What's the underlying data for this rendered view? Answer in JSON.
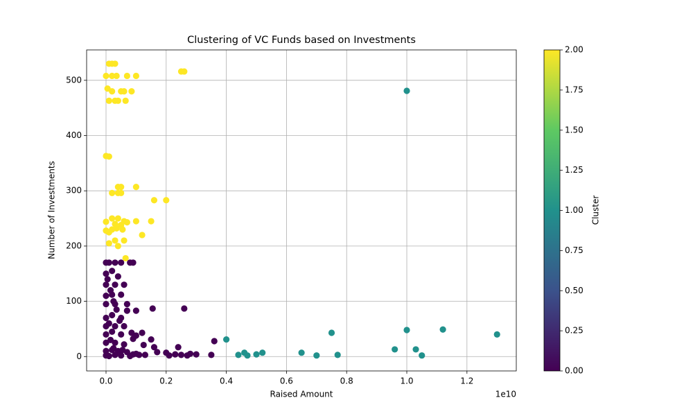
{
  "chart_data": {
    "type": "scatter",
    "title": "Clustering of VC Funds based on Investments",
    "x_label": "Raised Amount",
    "y_label": "Number of Investments",
    "x_offset_label": "1e10",
    "colorbar_label": "Cluster",
    "grid": true,
    "colormap": [
      "#440154",
      "#3b528b",
      "#21918c",
      "#5ec962",
      "#fde725"
    ],
    "xlim": [
      -645000000.0,
      13640000000.0
    ],
    "ylim": [
      -26,
      555
    ],
    "xticks": [
      {
        "value": 0,
        "label": "0.0"
      },
      {
        "value": 2000000000.0,
        "label": "0.2"
      },
      {
        "value": 4000000000.0,
        "label": "0.4"
      },
      {
        "value": 6000000000.0,
        "label": "0.6"
      },
      {
        "value": 8000000000.0,
        "label": "0.8"
      },
      {
        "value": 10000000000.0,
        "label": "1.0"
      },
      {
        "value": 12000000000.0,
        "label": "1.2"
      }
    ],
    "yticks": [
      0,
      100,
      200,
      300,
      400,
      500
    ],
    "clim": [
      0,
      2
    ],
    "cticks": [
      {
        "value": 0,
        "label": "0.00"
      },
      {
        "value": 0.25,
        "label": "0.25"
      },
      {
        "value": 0.5,
        "label": "0.50"
      },
      {
        "value": 0.75,
        "label": "0.75"
      },
      {
        "value": 1,
        "label": "1.00"
      },
      {
        "value": 1.25,
        "label": "1.25"
      },
      {
        "value": 1.5,
        "label": "1.50"
      },
      {
        "value": 1.75,
        "label": "1.75"
      },
      {
        "value": 2,
        "label": "2.00"
      }
    ],
    "x": [
      100000000.0,
      200000000.0,
      300000000.0,
      0,
      200000000.0,
      350000000.0,
      700000000.0,
      1000000000.0,
      50000000.0,
      200000000.0,
      500000000.0,
      600000000.0,
      850000000.0,
      100000000.0,
      300000000.0,
      400000000.0,
      650000000.0,
      0,
      100000000.0,
      2500000000.0,
      2600000000.0,
      200000000.0,
      400000000.0,
      500000000.0,
      400000000.0,
      500000000.0,
      1000000000.0,
      1600000000.0,
      2000000000.0,
      0,
      200000000.0,
      300000000.0,
      400000000.0,
      500000000.0,
      600000000.0,
      700000000.0,
      1000000000.0,
      1500000000.0,
      0,
      100000000.0,
      200000000.0,
      350000000.0,
      550000000.0,
      1200000000.0,
      100000000.0,
      300000000.0,
      400000000.0,
      600000000.0,
      650000000.0,
      10000000000.0,
      4000000000.0,
      4400000000.0,
      4600000000.0,
      4700000000.0,
      5000000000.0,
      5200000000.0,
      6500000000.0,
      7000000000.0,
      7500000000.0,
      7700000000.0,
      9600000000.0,
      10000000000.0,
      10300000000.0,
      10500000000.0,
      11200000000.0,
      13000000000.0,
      0,
      100000000.0,
      300000000.0,
      500000000.0,
      800000000.0,
      900000000.0,
      0,
      200000000.0,
      400000000.0,
      0,
      300000000.0,
      600000000.0,
      0,
      200000000.0,
      500000000.0,
      0,
      300000000.0,
      700000000.0,
      1000000000.0,
      700000000.0,
      1550000000.0,
      2600000000.0,
      0,
      200000000.0,
      500000000.0,
      0,
      300000000.0,
      600000000.0,
      0,
      200000000.0,
      500000000.0,
      850000000.0,
      1000000000.0,
      1200000000.0,
      900000000.0,
      1500000000.0,
      0,
      300000000.0,
      600000000.0,
      1250000000.0,
      1600000000.0,
      2400000000.0,
      3600000000.0,
      0,
      200000000.0,
      400000000.0,
      700000000.0,
      1000000000.0,
      1300000000.0,
      1700000000.0,
      2000000000.0,
      2100000000.0,
      2300000000.0,
      2500000000.0,
      2700000000.0,
      2800000000.0,
      3000000000.0,
      3500000000.0,
      0,
      100000000.0,
      300000000.0,
      500000000.0,
      800000000.0,
      50000000.0,
      150000000.0,
      250000000.0,
      350000000.0,
      450000000.0,
      100000000.0,
      150000000.0,
      250000000.0,
      550000000.0,
      900000000.0,
      1100000000.0
    ],
    "y": [
      530,
      530,
      530,
      508,
      508,
      508,
      508,
      508,
      485,
      480,
      480,
      480,
      480,
      463,
      463,
      463,
      463,
      363,
      362,
      516,
      516,
      296,
      296,
      296,
      307,
      307,
      307,
      283,
      283,
      244,
      250,
      240,
      250,
      238,
      245,
      243,
      245,
      245,
      228,
      225,
      230,
      232,
      230,
      220,
      205,
      210,
      200,
      210,
      178,
      481,
      31,
      3,
      7,
      2,
      4,
      7,
      7,
      2,
      43,
      3,
      13,
      48,
      13,
      2,
      49,
      40,
      170,
      170,
      170,
      170,
      170,
      170,
      150,
      155,
      145,
      130,
      130,
      130,
      110,
      112,
      112,
      95,
      95,
      95,
      83,
      83,
      87,
      87,
      70,
      75,
      70,
      55,
      55,
      55,
      40,
      45,
      40,
      43,
      38,
      43,
      32,
      31,
      25,
      25,
      22,
      21,
      17,
      17,
      28,
      10,
      12,
      10,
      8,
      5,
      3,
      8,
      7,
      2,
      4,
      3,
      2,
      5,
      4,
      3,
      2,
      1,
      3,
      2,
      1,
      140,
      120,
      100,
      85,
      65,
      60,
      30,
      15,
      12,
      4,
      3
    ],
    "c": [
      2,
      2,
      2,
      2,
      2,
      2,
      2,
      2,
      2,
      2,
      2,
      2,
      2,
      2,
      2,
      2,
      2,
      2,
      2,
      2,
      2,
      2,
      2,
      2,
      2,
      2,
      2,
      2,
      2,
      2,
      2,
      2,
      2,
      2,
      2,
      2,
      2,
      2,
      2,
      2,
      2,
      2,
      2,
      2,
      2,
      2,
      2,
      2,
      2,
      1,
      1,
      1,
      1,
      1,
      1,
      1,
      1,
      1,
      1,
      1,
      1,
      1,
      1,
      1,
      1,
      1,
      0,
      0,
      0,
      0,
      0,
      0,
      0,
      0,
      0,
      0,
      0,
      0,
      0,
      0,
      0,
      0,
      0,
      0,
      0,
      0,
      0,
      0,
      0,
      0,
      0,
      0,
      0,
      0,
      0,
      0,
      0,
      0,
      0,
      0,
      0,
      0,
      0,
      0,
      0,
      0,
      0,
      0,
      0,
      0,
      0,
      0,
      0,
      0,
      0,
      0,
      0,
      0,
      0,
      0,
      0,
      0,
      0,
      0,
      0,
      0,
      0,
      0,
      0,
      0,
      0,
      0,
      0,
      0,
      0,
      0,
      0,
      0,
      0,
      0,
      0
    ]
  }
}
